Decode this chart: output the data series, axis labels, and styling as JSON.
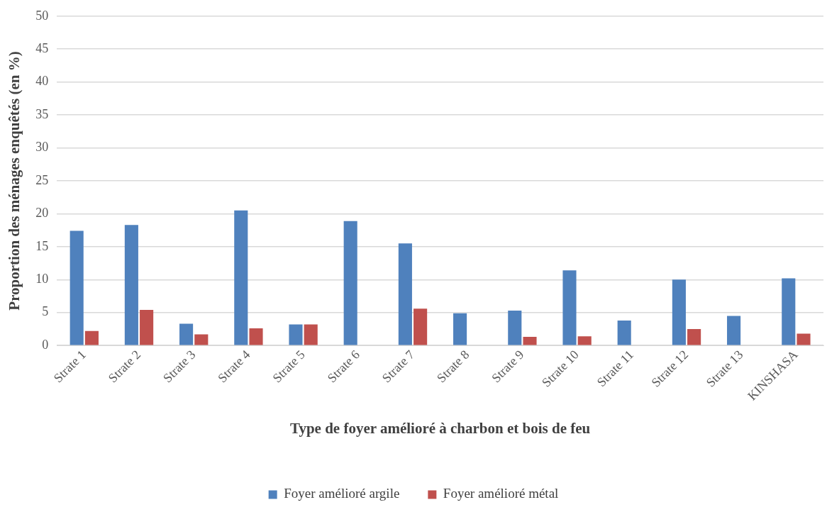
{
  "chart_data": {
    "type": "bar",
    "xlabel": "Type de foyer amélioré à charbon et bois de feu",
    "ylabel": "Proportion des ménages enquêtés (en %)",
    "categories": [
      "Strate 1",
      "Strate 2",
      "Strate 3",
      "Strate 4",
      "Strate 5",
      "Strate 6",
      "Strate 7",
      "Strate 8",
      "Strate 9",
      "Strate 10",
      "Strate 11",
      "Strate 12",
      "Strate 13",
      "KINSHASA"
    ],
    "series": [
      {
        "name": "Foyer amélioré argile",
        "color": "#4f81bd",
        "values": [
          17.4,
          18.3,
          3.3,
          20.5,
          3.2,
          18.9,
          15.5,
          4.9,
          5.3,
          11.4,
          3.8,
          10.0,
          4.5,
          10.2
        ]
      },
      {
        "name": "Foyer amélioré métal",
        "color": "#c0504d",
        "values": [
          2.2,
          5.4,
          1.7,
          2.6,
          3.2,
          null,
          5.6,
          null,
          1.3,
          1.4,
          null,
          2.5,
          null,
          1.8
        ]
      }
    ],
    "ylim": [
      0,
      50
    ],
    "yticks": [
      0,
      5,
      10,
      15,
      20,
      25,
      30,
      35,
      40,
      45,
      50
    ],
    "grid": "y",
    "legend": "bottom"
  }
}
